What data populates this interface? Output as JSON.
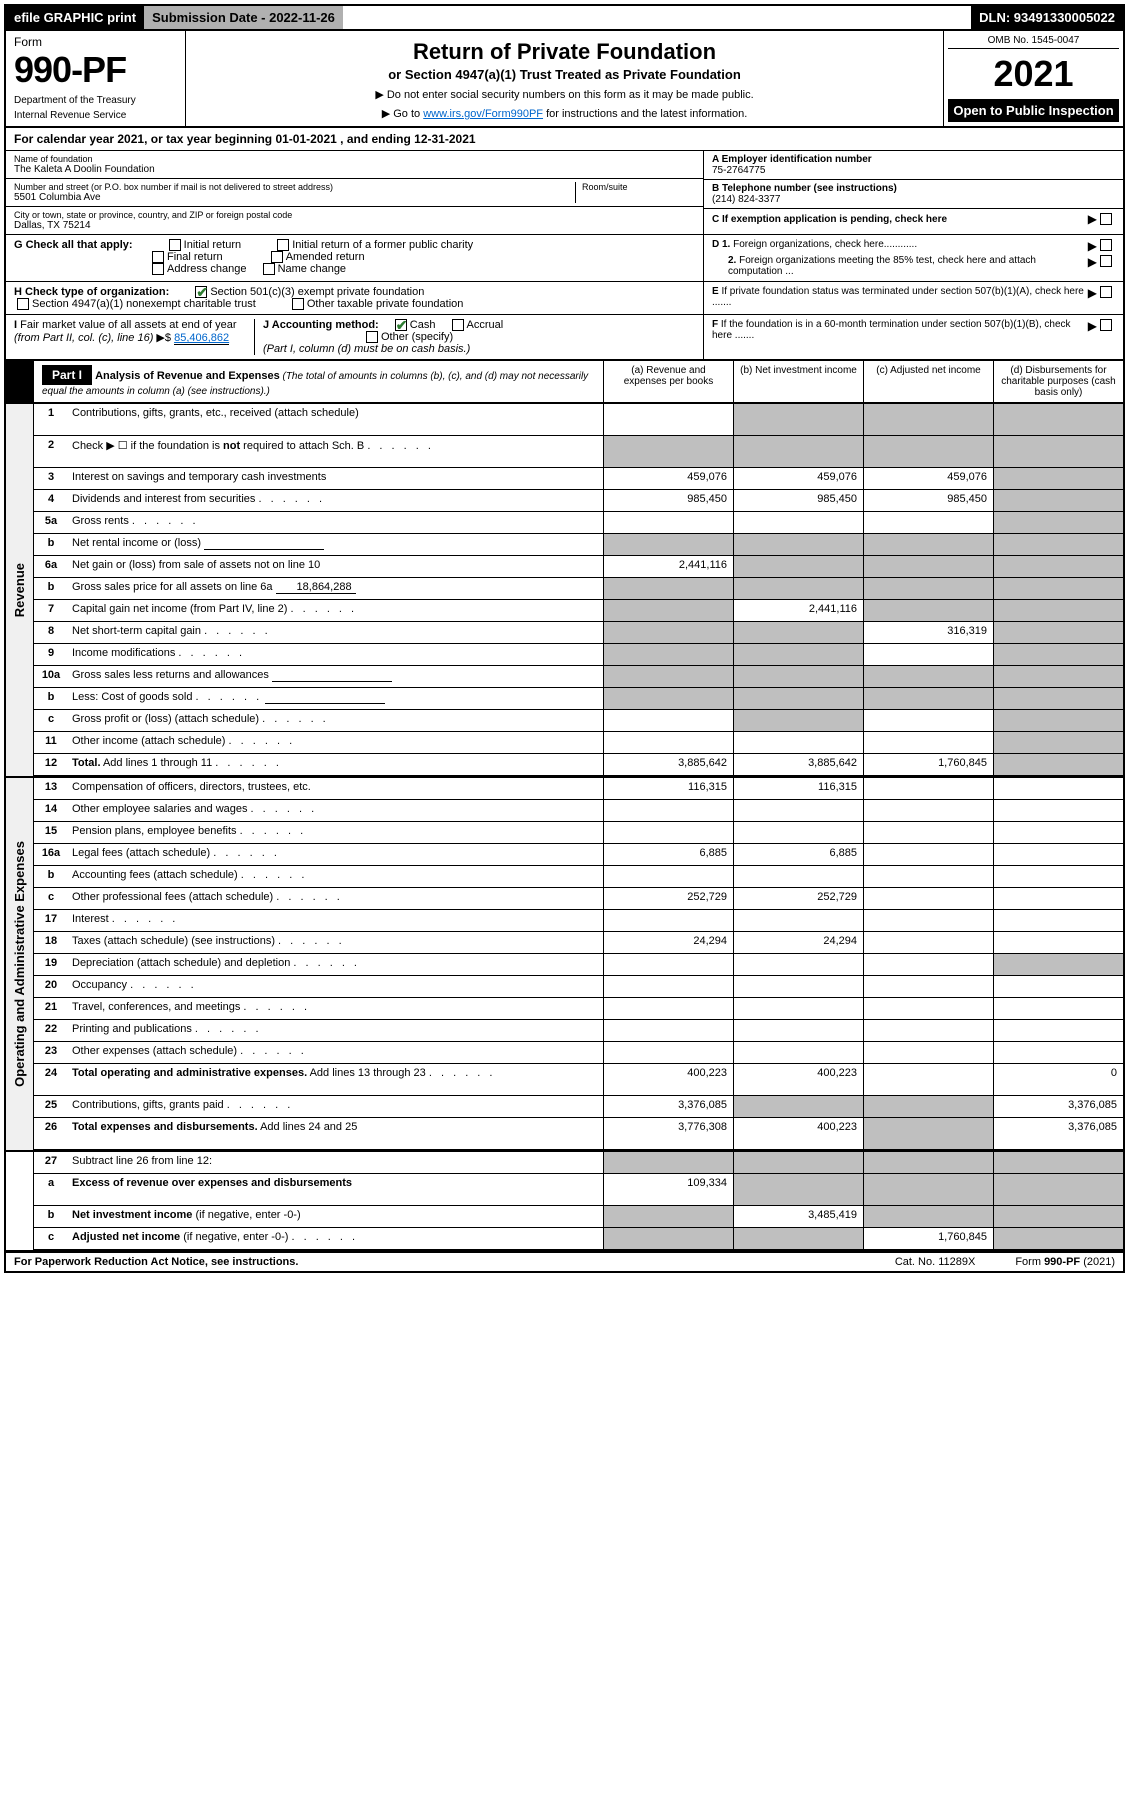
{
  "topbar": {
    "efile": "efile GRAPHIC print",
    "submission": "Submission Date - 2022-11-26",
    "dln": "DLN: 93491330005022"
  },
  "header": {
    "form_label": "Form",
    "form_number": "990-PF",
    "dept1": "Department of the Treasury",
    "dept2": "Internal Revenue Service",
    "title": "Return of Private Foundation",
    "subtitle": "or Section 4947(a)(1) Trust Treated as Private Foundation",
    "note1": "▶ Do not enter social security numbers on this form as it may be made public.",
    "note2_pre": "▶ Go to ",
    "note2_link": "www.irs.gov/Form990PF",
    "note2_post": " for instructions and the latest information.",
    "omb": "OMB No. 1545-0047",
    "year": "2021",
    "open": "Open to Public Inspection"
  },
  "calyear": "For calendar year 2021, or tax year beginning 01-01-2021                    , and ending 12-31-2021",
  "info": {
    "name_label": "Name of foundation",
    "name": "The Kaleta A Doolin Foundation",
    "addr_label": "Number and street (or P.O. box number if mail is not delivered to street address)",
    "addr": "5501 Columbia Ave",
    "room_label": "Room/suite",
    "city_label": "City or town, state or province, country, and ZIP or foreign postal code",
    "city": "Dallas, TX  75214",
    "a_label": "A Employer identification number",
    "a_val": "75-2764775",
    "b_label": "B Telephone number (see instructions)",
    "b_val": "(214) 824-3377",
    "c_label": "C If exemption application is pending, check here"
  },
  "checks": {
    "g_label": "G Check all that apply:",
    "g_initial": "Initial return",
    "g_initial_former": "Initial return of a former public charity",
    "g_final": "Final return",
    "g_amended": "Amended return",
    "g_address": "Address change",
    "g_name": "Name change",
    "h_label": "H Check type of organization:",
    "h_501": "Section 501(c)(3) exempt private foundation",
    "h_4947": "Section 4947(a)(1) nonexempt charitable trust",
    "h_other": "Other taxable private foundation",
    "i_label": "I Fair market value of all assets at end of year (from Part II, col. (c), line 16) ▶$ ",
    "i_val": "85,406,862",
    "j_label": "J Accounting method:",
    "j_cash": "Cash",
    "j_accrual": "Accrual",
    "j_other": "Other (specify)",
    "j_note": "(Part I, column (d) must be on cash basis.)",
    "d1": "D 1. Foreign organizations, check here............",
    "d2": "2. Foreign organizations meeting the 85% test, check here and attach computation ...",
    "e": "E  If private foundation status was terminated under section 507(b)(1)(A), check here .......",
    "f": "F  If the foundation is in a 60-month termination under section 507(b)(1)(B), check here ......."
  },
  "part1": {
    "tag": "Part I",
    "title": "Analysis of Revenue and Expenses",
    "title_note": " (The total of amounts in columns (b), (c), and (d) may not necessarily equal the amounts in column (a) (see instructions).)",
    "col_a": "(a)   Revenue and expenses per books",
    "col_b": "(b)   Net investment income",
    "col_c": "(c)   Adjusted net income",
    "col_d": "(d)   Disbursements for charitable purposes (cash basis only)"
  },
  "sections": {
    "revenue": "Revenue",
    "expenses": "Operating and Administrative Expenses"
  },
  "rows": [
    {
      "n": "1",
      "label": "Contributions, gifts, grants, etc., received (attach schedule)",
      "tall": true,
      "sh": [
        false,
        true,
        true,
        true
      ]
    },
    {
      "n": "2",
      "label": "Check ▶ ☐ if the foundation is <b>not</b> required to attach Sch. B",
      "dots": true,
      "tall": true,
      "sh": [
        true,
        true,
        true,
        true
      ]
    },
    {
      "n": "3",
      "label": "Interest on savings and temporary cash investments",
      "a": "459,076",
      "b": "459,076",
      "c": "459,076",
      "sh": [
        false,
        false,
        false,
        true
      ]
    },
    {
      "n": "4",
      "label": "Dividends and interest from securities",
      "dots": true,
      "a": "985,450",
      "b": "985,450",
      "c": "985,450",
      "sh": [
        false,
        false,
        false,
        true
      ]
    },
    {
      "n": "5a",
      "label": "Gross rents",
      "dots": true,
      "sh": [
        false,
        false,
        false,
        true
      ]
    },
    {
      "n": "b",
      "label": "Net rental income or (loss)",
      "blank": true,
      "sh": [
        true,
        true,
        true,
        true
      ]
    },
    {
      "n": "6a",
      "label": "Net gain or (loss) from sale of assets not on line 10",
      "a": "2,441,116",
      "sh": [
        false,
        true,
        true,
        true
      ]
    },
    {
      "n": "b",
      "label": "Gross sales price for all assets on line 6a",
      "inlineval": "18,864,288",
      "sh": [
        true,
        true,
        true,
        true
      ]
    },
    {
      "n": "7",
      "label": "Capital gain net income (from Part IV, line 2)",
      "dots": true,
      "b": "2,441,116",
      "sh": [
        true,
        false,
        true,
        true
      ]
    },
    {
      "n": "8",
      "label": "Net short-term capital gain",
      "dots": true,
      "c": "316,319",
      "sh": [
        true,
        true,
        false,
        true
      ]
    },
    {
      "n": "9",
      "label": "Income modifications",
      "dots": true,
      "sh": [
        true,
        true,
        false,
        true
      ]
    },
    {
      "n": "10a",
      "label": "Gross sales less returns and allowances",
      "blank": true,
      "sh": [
        true,
        true,
        true,
        true
      ]
    },
    {
      "n": "b",
      "label": "Less: Cost of goods sold",
      "dots": true,
      "blank": true,
      "sh": [
        true,
        true,
        true,
        true
      ]
    },
    {
      "n": "c",
      "label": "Gross profit or (loss) (attach schedule)",
      "dots": true,
      "sh": [
        false,
        true,
        false,
        true
      ]
    },
    {
      "n": "11",
      "label": "Other income (attach schedule)",
      "dots": true,
      "sh": [
        false,
        false,
        false,
        true
      ]
    },
    {
      "n": "12",
      "label": "<b>Total.</b> Add lines 1 through 11",
      "dots": true,
      "a": "3,885,642",
      "b": "3,885,642",
      "c": "1,760,845",
      "sh": [
        false,
        false,
        false,
        true
      ]
    }
  ],
  "exp_rows": [
    {
      "n": "13",
      "label": "Compensation of officers, directors, trustees, etc.",
      "a": "116,315",
      "b": "116,315",
      "sh": [
        false,
        false,
        false,
        false
      ]
    },
    {
      "n": "14",
      "label": "Other employee salaries and wages",
      "dots": true,
      "sh": [
        false,
        false,
        false,
        false
      ]
    },
    {
      "n": "15",
      "label": "Pension plans, employee benefits",
      "dots": true,
      "sh": [
        false,
        false,
        false,
        false
      ]
    },
    {
      "n": "16a",
      "label": "Legal fees (attach schedule)",
      "dots": true,
      "a": "6,885",
      "b": "6,885",
      "sh": [
        false,
        false,
        false,
        false
      ]
    },
    {
      "n": "b",
      "label": "Accounting fees (attach schedule)",
      "dots": true,
      "sh": [
        false,
        false,
        false,
        false
      ]
    },
    {
      "n": "c",
      "label": "Other professional fees (attach schedule)",
      "dots": true,
      "a": "252,729",
      "b": "252,729",
      "sh": [
        false,
        false,
        false,
        false
      ]
    },
    {
      "n": "17",
      "label": "Interest",
      "dots": true,
      "sh": [
        false,
        false,
        false,
        false
      ]
    },
    {
      "n": "18",
      "label": "Taxes (attach schedule) (see instructions)",
      "dots": true,
      "a": "24,294",
      "b": "24,294",
      "sh": [
        false,
        false,
        false,
        false
      ]
    },
    {
      "n": "19",
      "label": "Depreciation (attach schedule) and depletion",
      "dots": true,
      "sh": [
        false,
        false,
        false,
        true
      ]
    },
    {
      "n": "20",
      "label": "Occupancy",
      "dots": true,
      "sh": [
        false,
        false,
        false,
        false
      ]
    },
    {
      "n": "21",
      "label": "Travel, conferences, and meetings",
      "dots": true,
      "sh": [
        false,
        false,
        false,
        false
      ]
    },
    {
      "n": "22",
      "label": "Printing and publications",
      "dots": true,
      "sh": [
        false,
        false,
        false,
        false
      ]
    },
    {
      "n": "23",
      "label": "Other expenses (attach schedule)",
      "dots": true,
      "sh": [
        false,
        false,
        false,
        false
      ]
    },
    {
      "n": "24",
      "label": "<b>Total operating and administrative expenses.</b> Add lines 13 through 23",
      "dots": true,
      "tall": true,
      "a": "400,223",
      "b": "400,223",
      "d": "0",
      "sh": [
        false,
        false,
        false,
        false
      ]
    },
    {
      "n": "25",
      "label": "Contributions, gifts, grants paid",
      "dots": true,
      "a": "3,376,085",
      "d": "3,376,085",
      "sh": [
        false,
        true,
        true,
        false
      ]
    },
    {
      "n": "26",
      "label": "<b>Total expenses and disbursements.</b> Add lines 24 and 25",
      "tall": true,
      "a": "3,776,308",
      "b": "400,223",
      "d": "3,376,085",
      "sh": [
        false,
        false,
        true,
        false
      ]
    }
  ],
  "net_rows": [
    {
      "n": "27",
      "label": "Subtract line 26 from line 12:",
      "sh": [
        true,
        true,
        true,
        true
      ]
    },
    {
      "n": "a",
      "label": "<b>Excess of revenue over expenses and disbursements</b>",
      "tall": true,
      "a": "109,334",
      "sh": [
        false,
        true,
        true,
        true
      ]
    },
    {
      "n": "b",
      "label": "<b>Net investment income</b> (if negative, enter -0-)",
      "b": "3,485,419",
      "sh": [
        true,
        false,
        true,
        true
      ]
    },
    {
      "n": "c",
      "label": "<b>Adjusted net income</b> (if negative, enter -0-)",
      "dots": true,
      "c": "1,760,845",
      "sh": [
        true,
        true,
        false,
        true
      ]
    }
  ],
  "footer": {
    "pra": "For Paperwork Reduction Act Notice, see instructions.",
    "cat": "Cat. No. 11289X",
    "form": "Form 990-PF (2021)"
  }
}
